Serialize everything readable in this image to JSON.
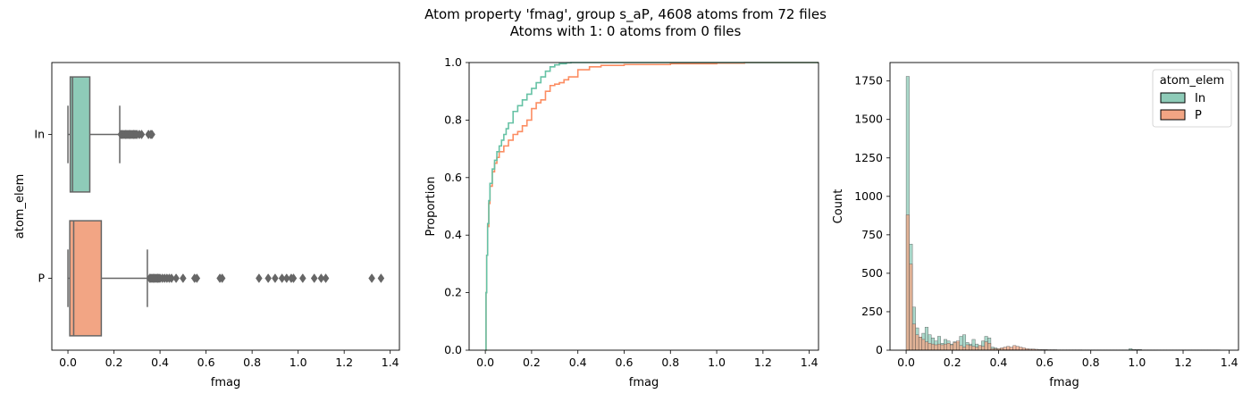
{
  "title": {
    "line1": "Atom property 'fmag', group s_aP, 4608 atoms from 72 files",
    "line2": "Atoms with 1: 0 atoms from 0 files"
  },
  "colors": {
    "In": "#8ecbb8",
    "P": "#f2a584",
    "In_line": "#66c2a5",
    "P_line": "#fc8d62",
    "box_edge": "#666666"
  },
  "chart_data": [
    {
      "type": "box",
      "orientation": "horizontal",
      "xlabel": "fmag",
      "ylabel": "atom_elem",
      "xlim": [
        -0.07,
        1.44
      ],
      "xticks": [
        0.0,
        0.2,
        0.4,
        0.6,
        0.8,
        1.0,
        1.2,
        1.4
      ],
      "xtick_labels": [
        "0.0",
        "0.2",
        "0.4",
        "0.6",
        "0.8",
        "1.0",
        "1.2",
        "1.4"
      ],
      "categories": [
        "In",
        "P"
      ],
      "boxes": [
        {
          "name": "In",
          "whislo": 0.0,
          "q1": 0.01,
          "med": 0.02,
          "q3": 0.095,
          "whishi": 0.225,
          "fliers": [
            0.23,
            0.235,
            0.24,
            0.245,
            0.25,
            0.255,
            0.26,
            0.265,
            0.27,
            0.275,
            0.28,
            0.285,
            0.29,
            0.295,
            0.3,
            0.31,
            0.32,
            0.35,
            0.36,
            0.365
          ]
        },
        {
          "name": "P",
          "whislo": 0.0,
          "q1": 0.008,
          "med": 0.025,
          "q3": 0.145,
          "whishi": 0.345,
          "fliers": [
            0.355,
            0.36,
            0.365,
            0.37,
            0.375,
            0.38,
            0.385,
            0.39,
            0.395,
            0.4,
            0.41,
            0.42,
            0.43,
            0.44,
            0.45,
            0.47,
            0.5,
            0.55,
            0.56,
            0.66,
            0.67,
            0.83,
            0.87,
            0.9,
            0.93,
            0.95,
            0.97,
            0.98,
            1.02,
            1.07,
            1.1,
            1.12,
            1.32,
            1.36
          ]
        }
      ]
    },
    {
      "type": "line",
      "xlabel": "fmag",
      "ylabel": "Proportion",
      "xlim": [
        -0.07,
        1.44
      ],
      "ylim": [
        0.0,
        1.0
      ],
      "xticks": [
        0.0,
        0.2,
        0.4,
        0.6,
        0.8,
        1.0,
        1.2,
        1.4
      ],
      "xtick_labels": [
        "0.0",
        "0.2",
        "0.4",
        "0.6",
        "0.8",
        "1.0",
        "1.2",
        "1.4"
      ],
      "yticks": [
        0.0,
        0.2,
        0.4,
        0.6,
        0.8,
        1.0
      ],
      "ytick_labels": [
        "0.0",
        "0.2",
        "0.4",
        "0.6",
        "0.8",
        "1.0"
      ],
      "series": [
        {
          "name": "In",
          "x": [
            0.0,
            0.003,
            0.006,
            0.01,
            0.015,
            0.02,
            0.03,
            0.04,
            0.05,
            0.06,
            0.07,
            0.08,
            0.09,
            0.1,
            0.12,
            0.14,
            0.16,
            0.18,
            0.2,
            0.22,
            0.24,
            0.26,
            0.28,
            0.3,
            0.32,
            0.35,
            0.37,
            1.44
          ],
          "y": [
            0.0,
            0.2,
            0.33,
            0.44,
            0.52,
            0.58,
            0.63,
            0.66,
            0.69,
            0.71,
            0.73,
            0.75,
            0.77,
            0.79,
            0.83,
            0.85,
            0.87,
            0.89,
            0.91,
            0.93,
            0.95,
            0.97,
            0.985,
            0.992,
            0.996,
            0.999,
            1.0,
            1.0
          ]
        },
        {
          "name": "P",
          "x": [
            0.0,
            0.003,
            0.006,
            0.01,
            0.015,
            0.02,
            0.03,
            0.04,
            0.05,
            0.06,
            0.08,
            0.1,
            0.12,
            0.14,
            0.16,
            0.18,
            0.2,
            0.22,
            0.24,
            0.26,
            0.28,
            0.3,
            0.32,
            0.34,
            0.36,
            0.4,
            0.45,
            0.5,
            0.6,
            0.8,
            1.0,
            1.12,
            1.44
          ],
          "y": [
            0.0,
            0.2,
            0.33,
            0.43,
            0.51,
            0.57,
            0.62,
            0.65,
            0.67,
            0.69,
            0.71,
            0.73,
            0.75,
            0.76,
            0.78,
            0.8,
            0.84,
            0.86,
            0.87,
            0.9,
            0.92,
            0.925,
            0.93,
            0.94,
            0.95,
            0.975,
            0.985,
            0.99,
            0.993,
            0.996,
            0.998,
            1.0,
            1.0
          ]
        }
      ]
    },
    {
      "type": "bar",
      "histogram": true,
      "xlabel": "fmag",
      "ylabel": "Count",
      "xlim": [
        -0.07,
        1.44
      ],
      "ylim": [
        0,
        1870
      ],
      "xticks": [
        0.0,
        0.2,
        0.4,
        0.6,
        0.8,
        1.0,
        1.2,
        1.4
      ],
      "xtick_labels": [
        "0.0",
        "0.2",
        "0.4",
        "0.6",
        "0.8",
        "1.0",
        "1.2",
        "1.4"
      ],
      "yticks": [
        0,
        250,
        500,
        750,
        1000,
        1250,
        1500,
        1750
      ],
      "ytick_labels": [
        "0",
        "250",
        "500",
        "750",
        "1000",
        "1250",
        "1500",
        "1750"
      ],
      "bin_start": 0.0,
      "bin_width": 0.0136,
      "legend": {
        "title": "atom_elem",
        "entries": [
          "In",
          "P"
        ],
        "placement": "top-right"
      },
      "series": [
        {
          "name": "In",
          "values": [
            1780,
            690,
            280,
            145,
            85,
            110,
            150,
            100,
            80,
            60,
            90,
            45,
            70,
            60,
            40,
            55,
            50,
            90,
            100,
            50,
            40,
            70,
            40,
            30,
            60,
            90,
            80,
            20,
            15,
            10,
            10,
            5,
            5,
            5,
            5,
            5,
            3,
            3,
            3,
            3,
            3,
            2,
            2,
            2,
            2,
            2,
            2,
            2,
            2,
            2,
            2,
            2,
            2,
            2,
            2,
            2,
            1,
            1,
            1,
            1,
            1,
            1,
            1,
            1,
            1,
            1,
            1,
            1,
            1,
            1,
            1,
            10,
            5,
            5,
            5,
            1,
            1,
            1,
            1,
            1
          ]
        },
        {
          "name": "P",
          "values": [
            880,
            560,
            170,
            100,
            85,
            70,
            55,
            45,
            40,
            35,
            40,
            35,
            40,
            45,
            35,
            50,
            60,
            30,
            20,
            35,
            30,
            25,
            20,
            30,
            25,
            55,
            45,
            10,
            10,
            10,
            15,
            20,
            25,
            20,
            30,
            25,
            20,
            15,
            10,
            8,
            8,
            6,
            5,
            4,
            4,
            3,
            3,
            3,
            2,
            2,
            2,
            2,
            2,
            2,
            2,
            2,
            2,
            2,
            2,
            2,
            2,
            2,
            2,
            2,
            2,
            2,
            2,
            2,
            2,
            2,
            2,
            2,
            2,
            2,
            2,
            2,
            2,
            2,
            2,
            2,
            2,
            2,
            2,
            2,
            2,
            2,
            2,
            2,
            2,
            2,
            2,
            2,
            2,
            2,
            2,
            2,
            2,
            2,
            2,
            2
          ]
        }
      ]
    }
  ]
}
